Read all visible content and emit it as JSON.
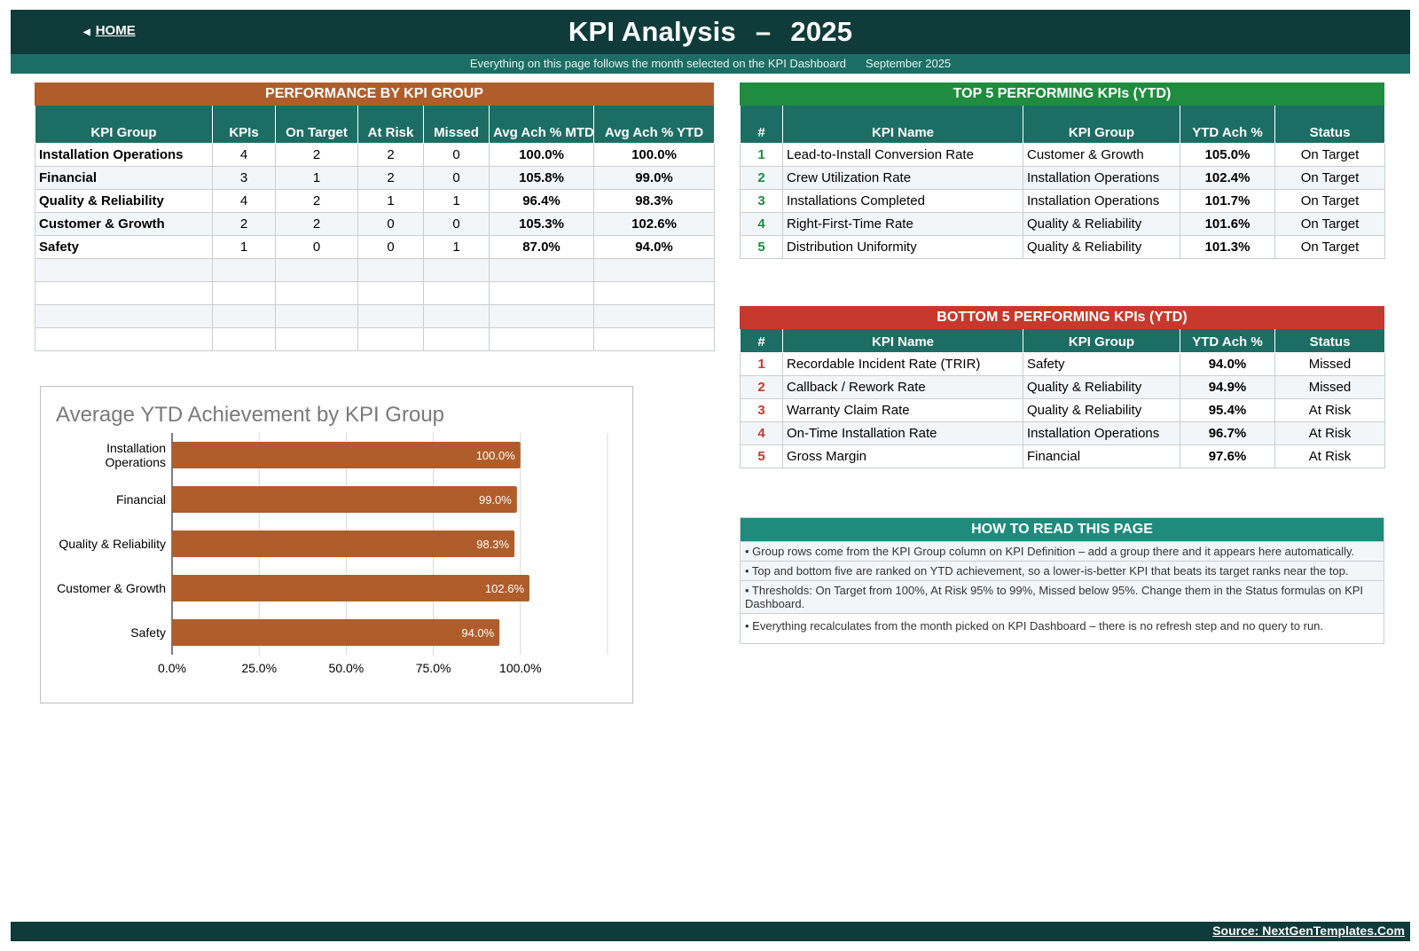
{
  "header": {
    "home_label": "HOME",
    "title": "KPI Analysis",
    "separator": "–",
    "year": "2025",
    "subtitle": "Everything on this page follows the month selected on the KPI Dashboard",
    "selected_month": "September 2025"
  },
  "performance": {
    "title": "PERFORMANCE BY KPI GROUP",
    "headers": [
      "KPI Group",
      "KPIs",
      "On Target",
      "At Risk",
      "Missed",
      "Avg Ach % MTD",
      "Avg Ach % YTD"
    ],
    "rows": [
      [
        "Installation Operations",
        "4",
        "2",
        "2",
        "0",
        "100.0%",
        "100.0%"
      ],
      [
        "Financial",
        "3",
        "1",
        "2",
        "0",
        "105.8%",
        "99.0%"
      ],
      [
        "Quality & Reliability",
        "4",
        "2",
        "1",
        "1",
        "96.4%",
        "98.3%"
      ],
      [
        "Customer & Growth",
        "2",
        "2",
        "0",
        "0",
        "105.3%",
        "102.6%"
      ],
      [
        "Safety",
        "1",
        "0",
        "0",
        "1",
        "87.0%",
        "94.0%"
      ],
      [
        "",
        "",
        "",
        "",
        "",
        "",
        ""
      ],
      [
        "",
        "",
        "",
        "",
        "",
        "",
        ""
      ],
      [
        "",
        "",
        "",
        "",
        "",
        "",
        ""
      ],
      [
        "",
        "",
        "",
        "",
        "",
        "",
        ""
      ]
    ]
  },
  "top5": {
    "title": "TOP 5 PERFORMING KPIs  (YTD)",
    "headers": [
      "#",
      "KPI Name",
      "KPI Group",
      "YTD Ach %",
      "Status"
    ],
    "rows": [
      [
        "1",
        "Lead-to-Install Conversion Rate",
        "Customer & Growth",
        "105.0%",
        "On Target"
      ],
      [
        "2",
        "Crew Utilization Rate",
        "Installation Operations",
        "102.4%",
        "On Target"
      ],
      [
        "3",
        "Installations Completed",
        "Installation Operations",
        "101.7%",
        "On Target"
      ],
      [
        "4",
        "Right-First-Time Rate",
        "Quality & Reliability",
        "101.6%",
        "On Target"
      ],
      [
        "5",
        "Distribution Uniformity",
        "Quality & Reliability",
        "101.3%",
        "On Target"
      ]
    ]
  },
  "bottom5": {
    "title": "BOTTOM 5 PERFORMING KPIs  (YTD)",
    "headers": [
      "#",
      "KPI Name",
      "KPI Group",
      "YTD Ach %",
      "Status"
    ],
    "rows": [
      [
        "1",
        "Recordable Incident Rate (TRIR)",
        "Safety",
        "94.0%",
        "Missed"
      ],
      [
        "2",
        "Callback / Rework Rate",
        "Quality & Reliability",
        "94.9%",
        "Missed"
      ],
      [
        "3",
        "Warranty Claim Rate",
        "Quality & Reliability",
        "95.4%",
        "At Risk"
      ],
      [
        "4",
        "On-Time Installation Rate",
        "Installation Operations",
        "96.7%",
        "At Risk"
      ],
      [
        "5",
        "Gross Margin",
        "Financial",
        "97.6%",
        "At Risk"
      ]
    ]
  },
  "howto": {
    "title": "HOW TO READ THIS PAGE",
    "notes": [
      "•  Group rows come from the KPI Group column on KPI Definition – add a group there and it appears here automatically.",
      "•  Top and bottom five are ranked on YTD achievement, so a lower-is-better KPI that beats its target ranks near the top.",
      "•  Thresholds: On Target from 100%, At Risk 95% to 99%, Missed below 95%. Change them in the Status formulas on KPI Dashboard.",
      "•  Everything recalculates from the month picked on KPI Dashboard – there is no refresh step and no query to run."
    ]
  },
  "chart_data": {
    "type": "bar",
    "orientation": "horizontal",
    "title": "Average YTD Achievement by KPI Group",
    "categories": [
      "Installation Operations",
      "Financial",
      "Quality & Reliability",
      "Customer & Growth",
      "Safety"
    ],
    "category_lines": [
      [
        "Installation",
        "Operations"
      ],
      [
        "Financial"
      ],
      [
        "Quality & Reliability"
      ],
      [
        "Customer & Growth"
      ],
      [
        "Safety"
      ]
    ],
    "values": [
      100.0,
      99.0,
      98.3,
      102.6,
      94.0
    ],
    "data_labels": [
      "100.0%",
      "99.0%",
      "98.3%",
      "102.6%",
      "94.0%"
    ],
    "xlim": [
      0,
      125
    ],
    "xticks": [
      0,
      25,
      50,
      75,
      100
    ],
    "xtick_labels": [
      "0.0%",
      "25.0%",
      "50.0%",
      "75.0%",
      "100.0%"
    ],
    "grid": true,
    "bar_color": "#b05d2c"
  },
  "footer": {
    "source": "Source: NextGenTemplates.Com"
  },
  "colors": {
    "header_bg": "#0f3b3a",
    "subheader_bg": "#1c6e64",
    "group_band": "#b05d2c",
    "top_band": "#1f8c3f",
    "bottom_band": "#c6392c",
    "howto_band": "#1e8b7d"
  }
}
